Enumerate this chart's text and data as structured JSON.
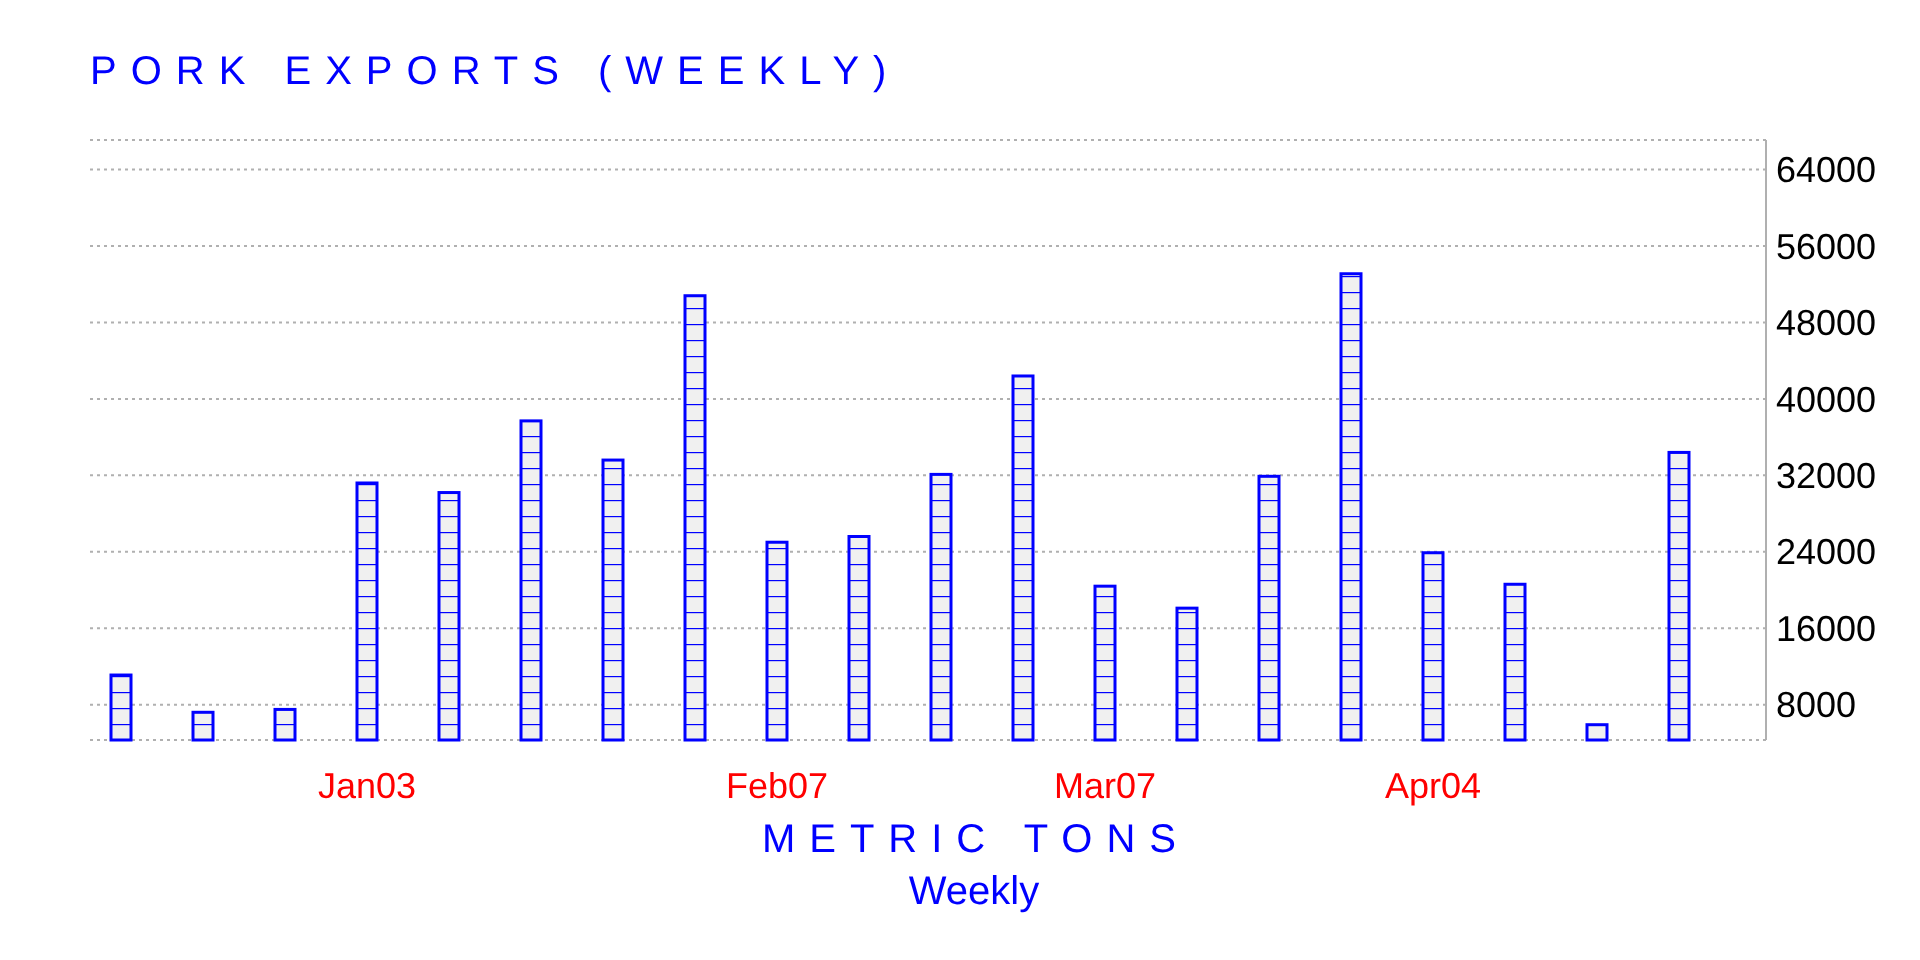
{
  "chart_data": {
    "type": "bar",
    "title": "PORK EXPORTS (WEEKLY)",
    "xlabel": "METRIC TONS",
    "annotations": [
      "Weekly"
    ],
    "categories": [
      null,
      null,
      null,
      "Jan03",
      null,
      null,
      null,
      null,
      "Feb07",
      null,
      null,
      null,
      "Mar07",
      null,
      null,
      null,
      "Apr04",
      null,
      null,
      null
    ],
    "values": [
      11100,
      7200,
      7500,
      31200,
      30200,
      37700,
      33600,
      50800,
      25000,
      25600,
      32100,
      42400,
      20400,
      18100,
      31900,
      53100,
      23900,
      20600,
      5900,
      34400
    ],
    "color": "#0000ff",
    "ylim": [
      4300,
      67100
    ],
    "yticks": [
      8000,
      16000,
      24000,
      32000,
      40000,
      48000,
      56000,
      64000
    ],
    "grid": "y"
  }
}
